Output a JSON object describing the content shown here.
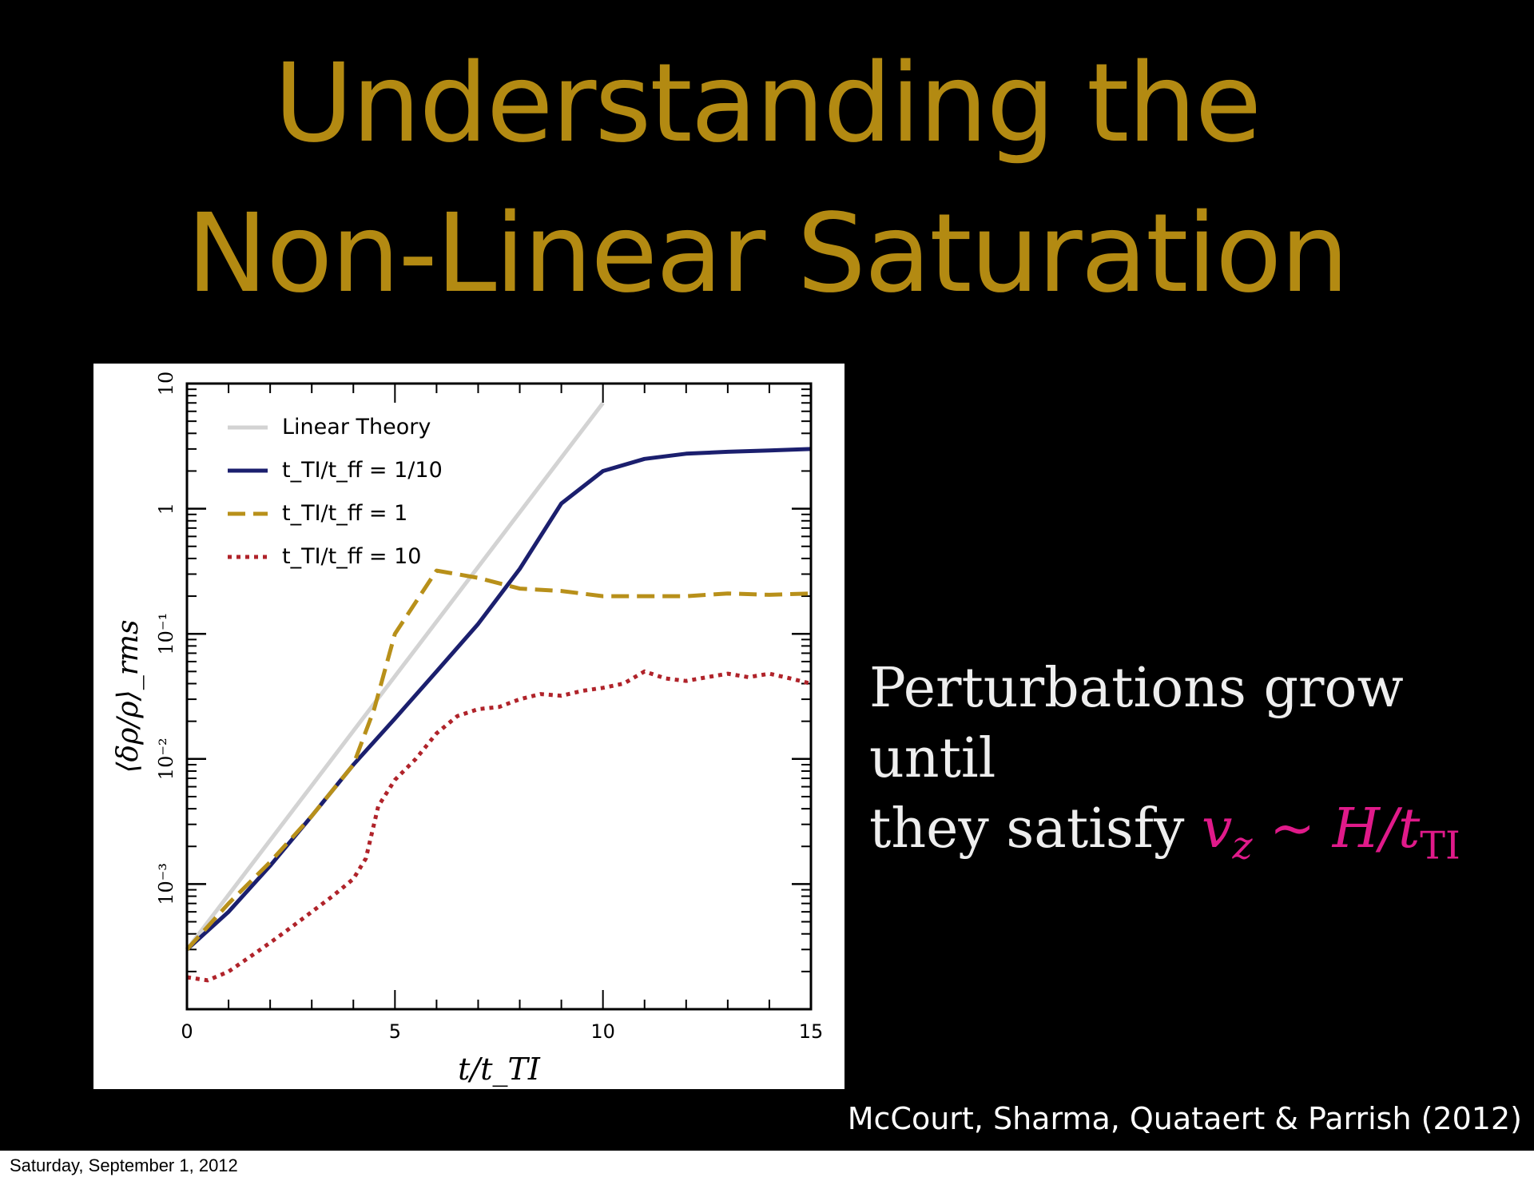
{
  "slide": {
    "title_line1": "Understanding the",
    "title_line2": "Non-Linear Saturation",
    "caption_text1": "Perturbations grow until",
    "caption_text2": "they satisfy",
    "caption_math_v": "v",
    "caption_math_vsub": "z",
    "caption_math_sep": " ~ ",
    "caption_math_h": "H/t",
    "caption_math_hsub": "TI",
    "credit": "McCourt, Sharma, Quataert & Parrish (2012)",
    "title_color": "#b38a12",
    "math_color": "#e01a8a"
  },
  "footer": {
    "date": "Saturday, September 1, 2012"
  },
  "chart_data": {
    "type": "line",
    "title": "",
    "xlabel": "t/t_TI",
    "ylabel": "⟨δρ/ρ⟩_rms",
    "xlim": [
      0,
      15
    ],
    "ylim": [
      0.0001,
      10
    ],
    "yscale": "log",
    "x_ticks": [
      0,
      5,
      10,
      15
    ],
    "x_tick_labels": [
      "0",
      "5",
      "10",
      "15"
    ],
    "y_ticks": [
      0.001,
      0.01,
      0.1,
      1,
      10
    ],
    "y_tick_labels": [
      "10⁻³",
      "10⁻²",
      "10⁻¹",
      "1",
      "10"
    ],
    "grid": false,
    "legend_position": "top-left",
    "series": [
      {
        "name": "Linear Theory",
        "color": "#d3d3d3",
        "style": "solid",
        "x": [
          0,
          10
        ],
        "y": [
          0.0003,
          7
        ]
      },
      {
        "name": "t_TI/t_ff = 1/10",
        "color": "#1b1f6e",
        "style": "solid",
        "x": [
          0,
          1,
          2,
          3,
          4,
          5,
          6,
          7,
          8,
          9,
          10,
          11,
          12,
          13,
          14,
          15
        ],
        "y": [
          0.0003,
          0.0006,
          0.0014,
          0.0035,
          0.009,
          0.021,
          0.05,
          0.12,
          0.33,
          1.1,
          2.0,
          2.5,
          2.75,
          2.85,
          2.92,
          3.0
        ]
      },
      {
        "name": "t_TI/t_ff = 1",
        "color": "#b8901a",
        "style": "dashed",
        "x": [
          0,
          1,
          2,
          3,
          4,
          4.5,
          5,
          6,
          7,
          8,
          9,
          10,
          11,
          12,
          13,
          14,
          15
        ],
        "y": [
          0.0003,
          0.0007,
          0.0015,
          0.0035,
          0.009,
          0.025,
          0.1,
          0.32,
          0.28,
          0.23,
          0.22,
          0.2,
          0.2,
          0.2,
          0.21,
          0.205,
          0.21
        ]
      },
      {
        "name": "t_TI/t_ff = 10",
        "color": "#b0232a",
        "style": "dotted",
        "x": [
          0,
          0.5,
          1,
          1.5,
          2,
          2.5,
          3,
          3.5,
          4,
          4.3,
          4.6,
          5,
          5.5,
          6,
          6.5,
          7,
          7.5,
          8,
          8.5,
          9,
          9.5,
          10,
          10.5,
          11,
          11.5,
          12,
          12.5,
          13,
          13.5,
          14,
          14.5,
          15
        ],
        "y": [
          0.00018,
          0.00017,
          0.0002,
          0.00026,
          0.00034,
          0.00045,
          0.0006,
          0.0008,
          0.0011,
          0.0016,
          0.0042,
          0.0068,
          0.01,
          0.016,
          0.022,
          0.025,
          0.026,
          0.03,
          0.033,
          0.032,
          0.035,
          0.037,
          0.04,
          0.05,
          0.044,
          0.042,
          0.045,
          0.048,
          0.045,
          0.048,
          0.044,
          0.04
        ]
      }
    ]
  }
}
